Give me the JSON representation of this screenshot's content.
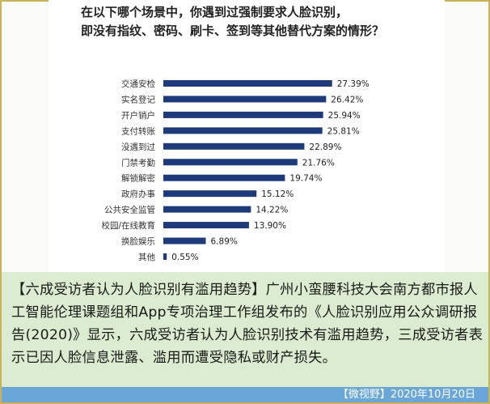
{
  "chart_data": {
    "type": "bar",
    "orientation": "horizontal",
    "title_lines": [
      "在以下哪个场景中，你遇到过强制要求人脸识别，",
      "即没有指纹、密码、刷卡、签到等其他替代方案的情形？"
    ],
    "categories": [
      "交通安检",
      "实名登记",
      "开户销户",
      "支付转账",
      "没遇到过",
      "门禁考勤",
      "解锁解密",
      "政府办事",
      "公共安全监管",
      "校园/在线教育",
      "换脸娱乐",
      "其他"
    ],
    "values": [
      27.39,
      26.42,
      25.94,
      25.81,
      22.89,
      21.76,
      19.74,
      15.12,
      14.22,
      13.9,
      6.89,
      0.55
    ],
    "value_labels": [
      "27.39%",
      "26.42%",
      "25.94%",
      "25.81%",
      "22.89%",
      "21.76%",
      "19.74%",
      "15.12%",
      "14.22%",
      "13.90%",
      "6.89%",
      "0.55%"
    ],
    "xlim": [
      0,
      28
    ],
    "bar_color": "#1f3a7a",
    "grid": false,
    "legend": "none"
  },
  "caption": {
    "headline": "【六成受访者认为人脸识别有滥用趋势】",
    "body": "广州小蛮腰科技大会南方都市报人工智能伦理课题组和App专项治理工作组发布的《人脸识别应用公众调研报告(2020)》显示，六成受访者认为人脸识别技术有滥用趋势，三成受访者表示已因人脸信息泄露、滥用而遭受隐私或财产损失。"
  },
  "source": "【微视野】2020年10月20日",
  "colors": {
    "caption_bg": "#dcecd0",
    "source_bar": "#6aa6d8",
    "border": "#c9b25a"
  }
}
